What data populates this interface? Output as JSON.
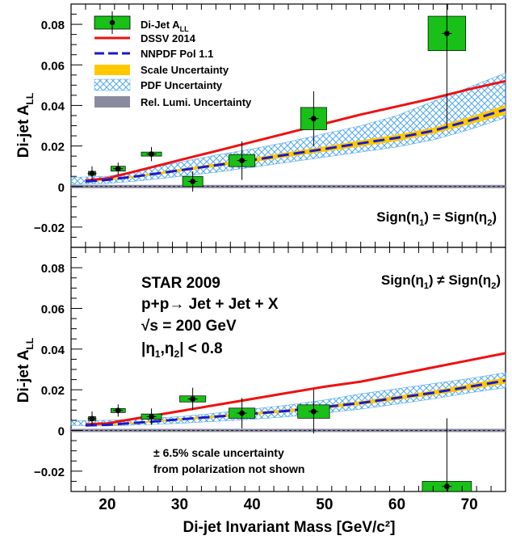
{
  "chart_data": {
    "type": "scatter",
    "x_axis": {
      "label": "Di-jet Invariant Mass [GeV/c²]",
      "range": [
        15,
        75
      ],
      "ticks": [
        20,
        30,
        40,
        50,
        60,
        70
      ],
      "tick_labels": [
        "20",
        "30",
        "40",
        "50",
        "60",
        "70"
      ]
    },
    "legend": {
      "placement": "top-left (top panel)",
      "entries": [
        {
          "label": "Di-Jet A",
          "sub": "LL",
          "kind": "data-box"
        },
        {
          "label": "DSSV 2014",
          "kind": "solid-line"
        },
        {
          "label": "NNPDF Pol 1.1",
          "kind": "dashed-line"
        },
        {
          "label": "Scale Uncertainty",
          "kind": "filled-box"
        },
        {
          "label": "PDF Uncertainty",
          "kind": "hatched-box"
        },
        {
          "label": "Rel. Lumi. Uncertainty",
          "kind": "grey-box"
        }
      ]
    },
    "colors": {
      "data_fill": "#18c018",
      "dssv": "#ee1111",
      "nnpdf": "#1a1acc",
      "scale_band": "#ffc800",
      "pdf_hatch": "#55aaee",
      "lumi": "#8a8aa0"
    },
    "panels": [
      {
        "id": "top",
        "ylabel": "Di-jet A",
        "ylabel_sub": "LL",
        "ylim": [
          -0.03,
          0.09
        ],
        "yticks": [
          -0.02,
          0,
          0.02,
          0.04,
          0.06,
          0.08
        ],
        "ytick_labels": [
          "−0.02",
          "0",
          "0.02",
          "0.04",
          "0.06",
          "0.08"
        ],
        "label": {
          "main": "Sign(η",
          "sub1": "1",
          "mid": ") = Sign(η",
          "sub2": "2",
          "end": ")"
        },
        "points": [
          {
            "x": 17.9,
            "y": 0.0065,
            "err": 0.0035,
            "syst_dx": 0.5,
            "syst_dy": 0.001
          },
          {
            "x": 21.5,
            "y": 0.0088,
            "err": 0.003,
            "syst_dx": 1.0,
            "syst_dy": 0.0012
          },
          {
            "x": 26.1,
            "y": 0.016,
            "err": 0.0035,
            "syst_dx": 1.4,
            "syst_dy": 0.001
          },
          {
            "x": 31.8,
            "y": 0.0025,
            "err": 0.005,
            "syst_dx": 1.4,
            "syst_dy": 0.0025
          },
          {
            "x": 38.6,
            "y": 0.0128,
            "err": 0.0095,
            "syst_dx": 1.8,
            "syst_dy": 0.003
          },
          {
            "x": 48.5,
            "y": 0.0335,
            "err": 0.0135,
            "syst_dx": 1.8,
            "syst_dy": 0.0055
          },
          {
            "x": 66.9,
            "y": 0.0755,
            "err": 0.046,
            "syst_dx": 2.6,
            "syst_dy": 0.0085
          }
        ],
        "dssv": {
          "x": [
            17,
            20,
            25,
            30,
            35,
            40,
            45,
            50,
            55,
            60,
            65,
            70,
            75
          ],
          "y": [
            0.003,
            0.004,
            0.0085,
            0.013,
            0.0175,
            0.022,
            0.0265,
            0.031,
            0.0355,
            0.0395,
            0.0435,
            0.048,
            0.052
          ]
        },
        "nnpdf": {
          "x": [
            17,
            20,
            25,
            30,
            35,
            40,
            45,
            50,
            55,
            60,
            65,
            70,
            75
          ],
          "y": [
            0.0025,
            0.0033,
            0.0055,
            0.008,
            0.0105,
            0.013,
            0.0158,
            0.0185,
            0.0213,
            0.024,
            0.0275,
            0.0325,
            0.038
          ]
        },
        "scale_band": {
          "x": [
            17,
            20,
            25,
            30,
            35,
            40,
            45,
            50,
            55,
            60,
            65,
            70,
            75
          ],
          "lo": [
            0.0022,
            0.003,
            0.005,
            0.0073,
            0.0097,
            0.012,
            0.0146,
            0.0172,
            0.0198,
            0.0224,
            0.026,
            0.0307,
            0.0355
          ],
          "hi": [
            0.0028,
            0.0036,
            0.006,
            0.0087,
            0.0113,
            0.014,
            0.017,
            0.0198,
            0.0228,
            0.0256,
            0.029,
            0.0343,
            0.0402
          ]
        },
        "pdf_band": {
          "x": [
            15,
            20,
            25,
            30,
            35,
            40,
            45,
            50,
            55,
            60,
            65,
            70,
            75
          ],
          "lo": [
            0.001,
            0.0015,
            0.003,
            0.005,
            0.007,
            0.0095,
            0.012,
            0.0145,
            0.017,
            0.0195,
            0.023,
            0.028,
            0.034
          ],
          "hi": [
            0.0045,
            0.005,
            0.0085,
            0.012,
            0.0155,
            0.0185,
            0.022,
            0.026,
            0.03,
            0.035,
            0.042,
            0.049,
            0.056
          ]
        },
        "lumi_band": 0.0008
      },
      {
        "id": "bottom",
        "ylabel": "Di-jet A",
        "ylabel_sub": "LL",
        "ylim": [
          -0.03,
          0.09
        ],
        "yticks": [
          -0.02,
          0,
          0.02,
          0.04,
          0.06,
          0.08
        ],
        "ytick_labels": [
          "−0.02",
          "0",
          "0.02",
          "0.04",
          "0.06",
          "0.08"
        ],
        "label": {
          "main": "Sign(η",
          "sub1": "1",
          "mid": ") ≠ Sign(η",
          "sub2": "2",
          "end": ")"
        },
        "points": [
          {
            "x": 17.9,
            "y": 0.0058,
            "err": 0.0035,
            "syst_dx": 0.5,
            "syst_dy": 0.001
          },
          {
            "x": 21.5,
            "y": 0.0098,
            "err": 0.003,
            "syst_dx": 1.0,
            "syst_dy": 0.001
          },
          {
            "x": 26.1,
            "y": 0.0068,
            "err": 0.004,
            "syst_dx": 1.4,
            "syst_dy": 0.0013
          },
          {
            "x": 31.8,
            "y": 0.0155,
            "err": 0.0055,
            "syst_dx": 1.8,
            "syst_dy": 0.0015
          },
          {
            "x": 38.6,
            "y": 0.0085,
            "err": 0.0075,
            "syst_dx": 1.8,
            "syst_dy": 0.0025
          },
          {
            "x": 48.5,
            "y": 0.0093,
            "err": 0.0108,
            "syst_dx": 2.2,
            "syst_dy": 0.0033
          },
          {
            "x": 66.9,
            "y": -0.0275,
            "err": 0.0335,
            "syst_dx": 3.4,
            "syst_dy": 0.0025
          }
        ],
        "dssv": {
          "x": [
            17,
            20,
            25,
            30,
            35,
            40,
            45,
            50,
            55,
            60,
            65,
            70,
            75
          ],
          "y": [
            0.003,
            0.0035,
            0.0065,
            0.0095,
            0.0125,
            0.0155,
            0.0185,
            0.0215,
            0.024,
            0.0275,
            0.031,
            0.0345,
            0.038
          ]
        },
        "nnpdf": {
          "x": [
            17,
            20,
            25,
            30,
            35,
            40,
            45,
            50,
            55,
            60,
            65,
            70,
            75
          ],
          "y": [
            0.0025,
            0.0028,
            0.004,
            0.0055,
            0.0068,
            0.0082,
            0.0097,
            0.0115,
            0.0135,
            0.016,
            0.0185,
            0.0215,
            0.0245
          ]
        },
        "scale_band": {
          "x": [
            17,
            20,
            25,
            30,
            35,
            40,
            45,
            50,
            55,
            60,
            65,
            70,
            75
          ],
          "lo": [
            0.0022,
            0.0025,
            0.0036,
            0.005,
            0.0062,
            0.0075,
            0.009,
            0.0107,
            0.0126,
            0.015,
            0.0174,
            0.0202,
            0.023
          ],
          "hi": [
            0.0028,
            0.0031,
            0.0044,
            0.006,
            0.0074,
            0.0089,
            0.0104,
            0.0123,
            0.0144,
            0.017,
            0.0196,
            0.0228,
            0.026
          ]
        },
        "pdf_band": {
          "x": [
            15,
            20,
            25,
            30,
            35,
            40,
            45,
            50,
            55,
            60,
            65,
            70,
            75
          ],
          "lo": [
            0.0025,
            0.0022,
            0.0028,
            0.0035,
            0.0045,
            0.0055,
            0.0068,
            0.0085,
            0.0105,
            0.013,
            0.0155,
            0.0185,
            0.021
          ],
          "hi": [
            0.0048,
            0.005,
            0.0058,
            0.0068,
            0.0085,
            0.0105,
            0.0125,
            0.015,
            0.018,
            0.0205,
            0.023,
            0.0255,
            0.0285
          ]
        },
        "lumi_band": 0.0008,
        "annotations": [
          {
            "text": "STAR 2009"
          },
          {
            "text": "p+p→ Jet + Jet + X"
          },
          {
            "text": "√s = 200 GeV"
          },
          {
            "text": "|η",
            "sub1": "1",
            "mid": ",η",
            "sub2": "2",
            "end": "| < 0.8"
          }
        ],
        "notes": [
          "± 6.5% scale uncertainty",
          "from polarization not shown"
        ]
      }
    ]
  }
}
